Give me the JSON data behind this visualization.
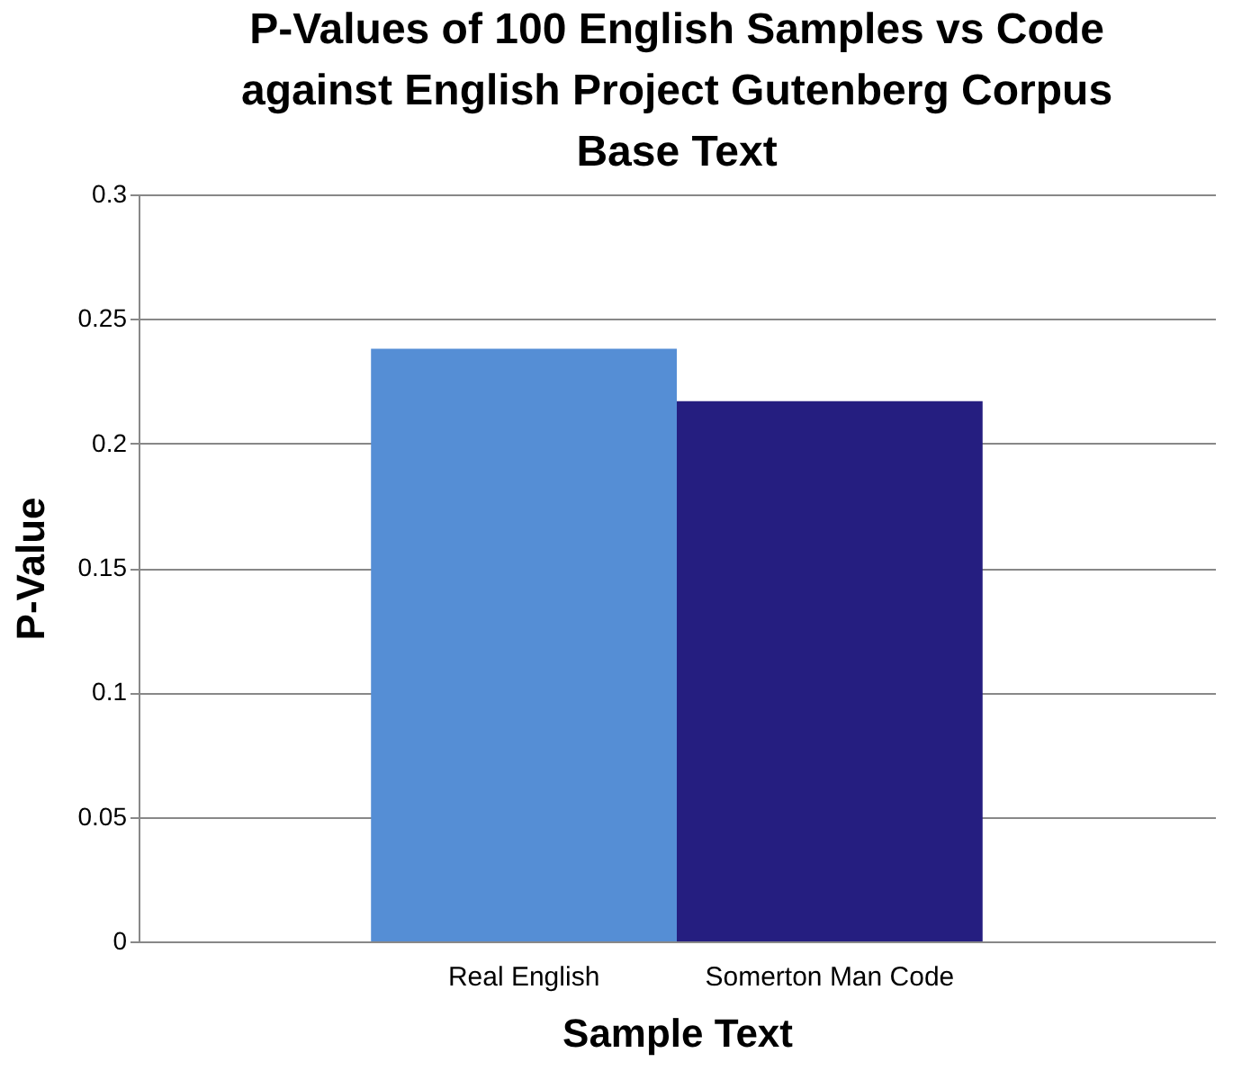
{
  "chart_data": {
    "type": "bar",
    "title": "P-Values of 100 English Samples vs Code against English Project Gutenberg Corpus Base Text",
    "categories": [
      "Real English",
      "Somerton Man Code"
    ],
    "values": [
      0.238,
      0.217
    ],
    "colors": [
      "#558ed5",
      "#251e80"
    ],
    "xlabel": "Sample Text",
    "ylabel": "P-Value",
    "ylim": [
      0,
      0.3
    ],
    "yticks": [
      0,
      0.05,
      0.1,
      0.15,
      0.2,
      0.25,
      0.3
    ],
    "grid": "y"
  }
}
